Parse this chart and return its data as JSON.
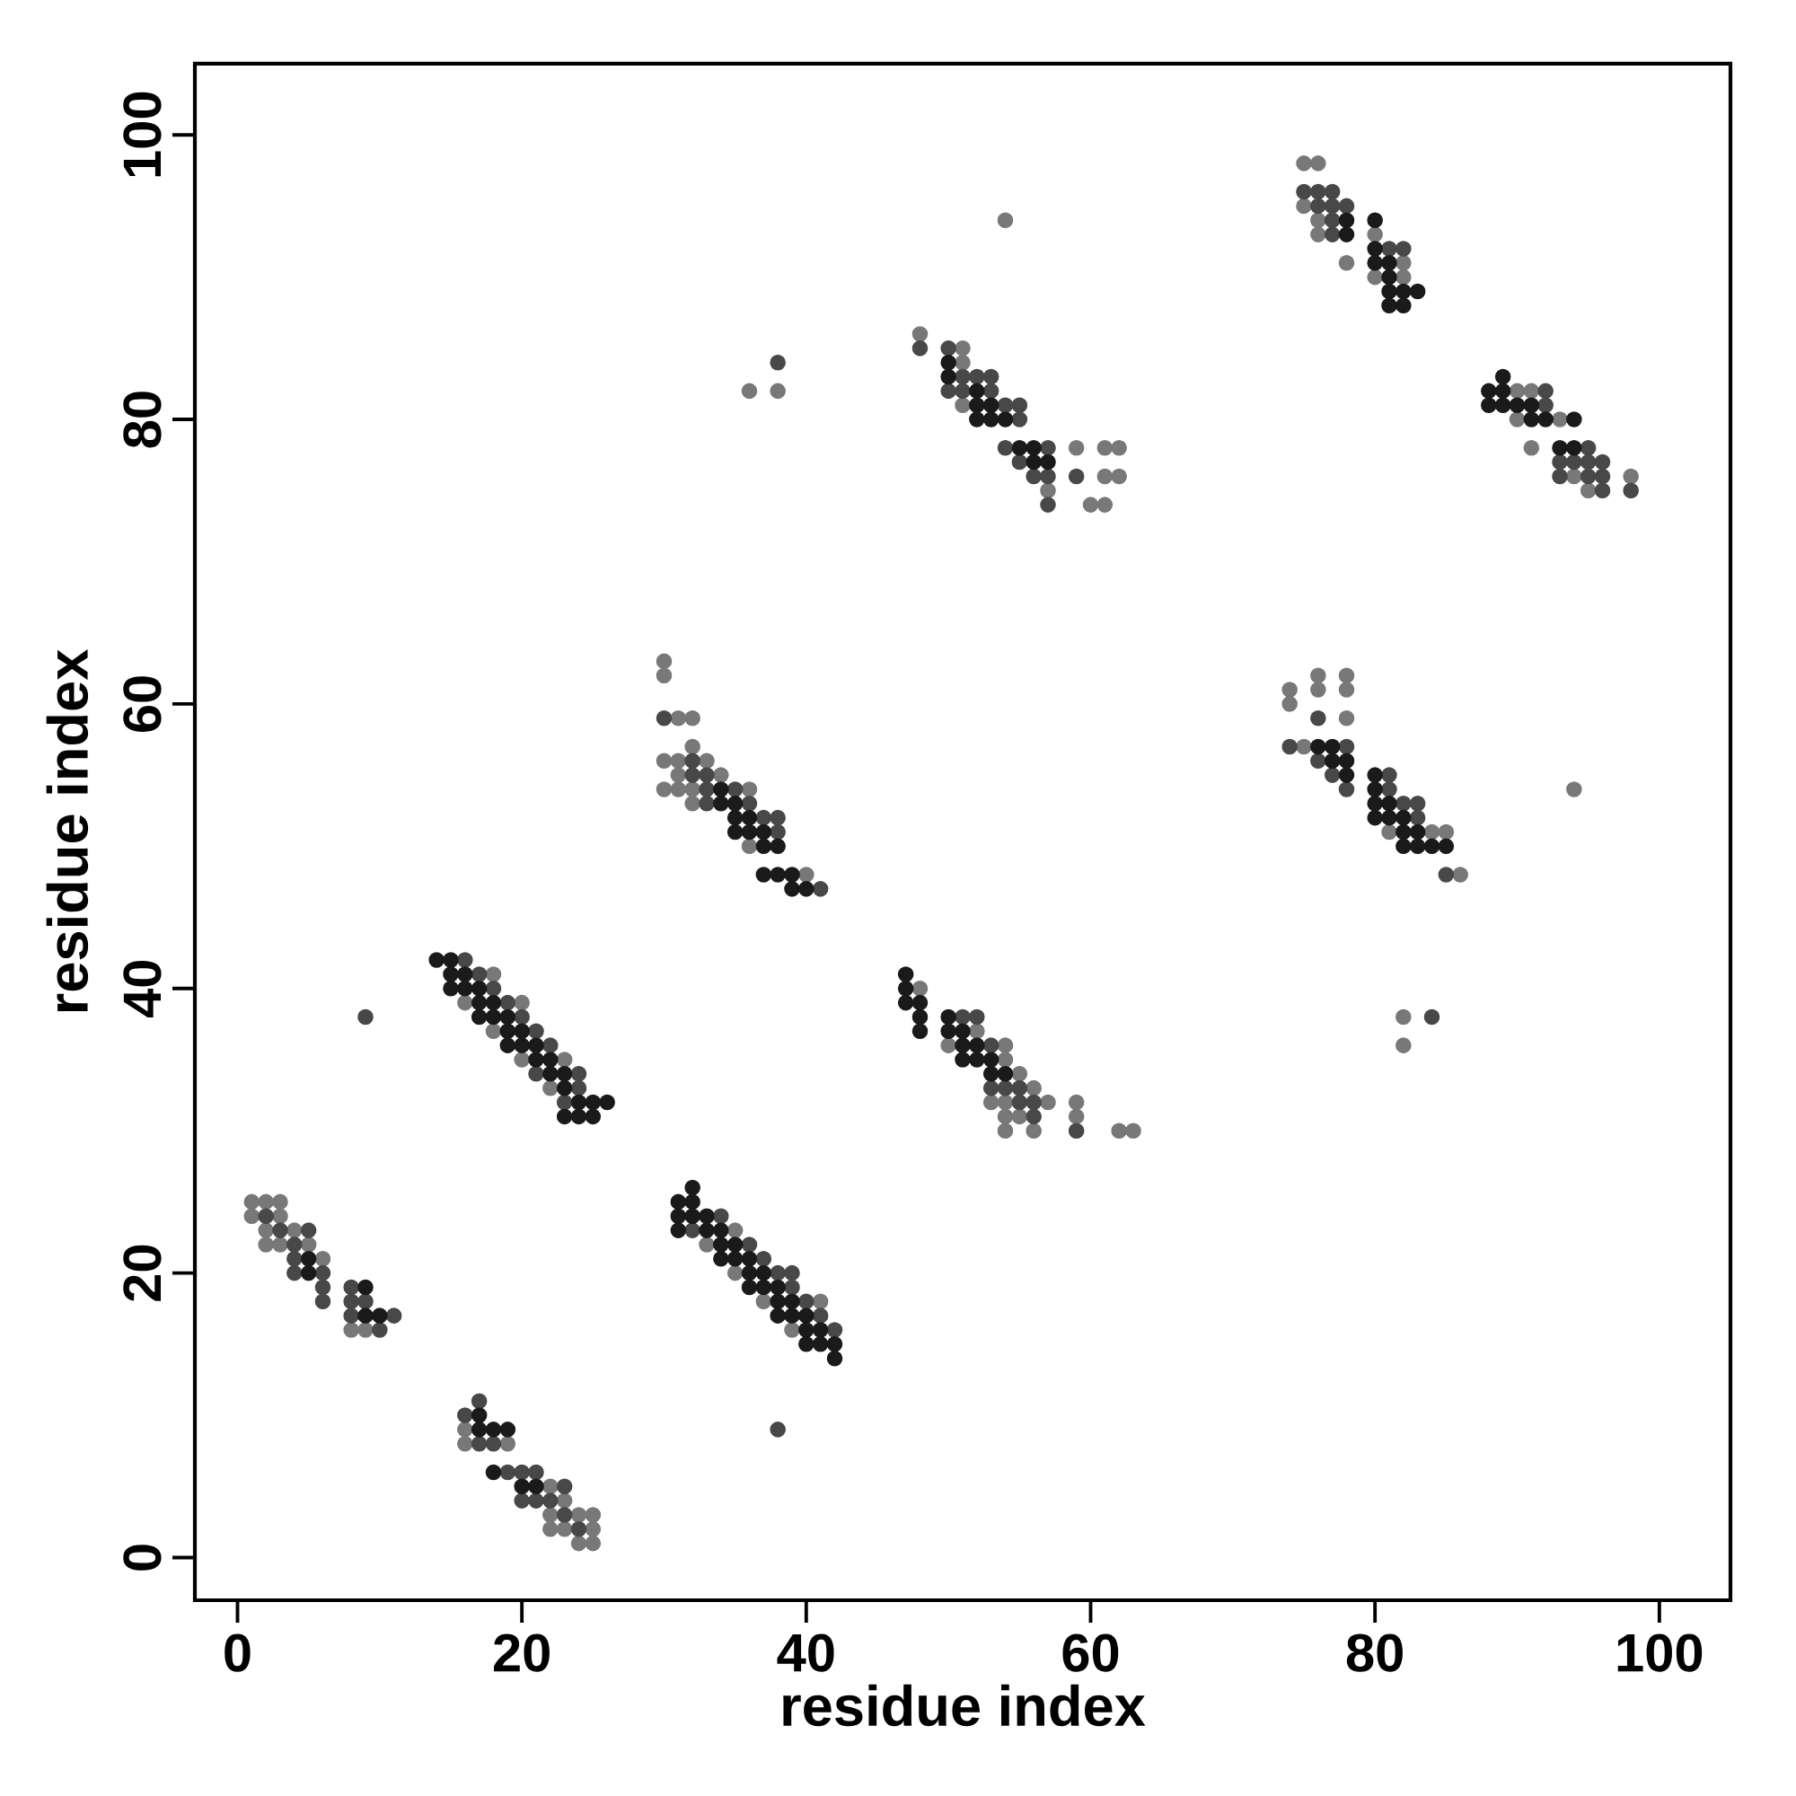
{
  "chart_data": {
    "type": "scatter",
    "xlabel": "residue index",
    "ylabel": "residue index",
    "xlim": [
      -3,
      105
    ],
    "ylim": [
      -3,
      105
    ],
    "xticks": [
      0,
      20,
      40,
      60,
      80,
      100
    ],
    "yticks": [
      0,
      20,
      40,
      60,
      80,
      100
    ],
    "marker": "circle",
    "series": [
      {
        "color": "#787878",
        "x": [
          1,
          2,
          3,
          1,
          3,
          2,
          4,
          2,
          3,
          5,
          6,
          8,
          9,
          16,
          16,
          19,
          22,
          23,
          22,
          24,
          25,
          22,
          23,
          25,
          24,
          25,
          18,
          16,
          20,
          18,
          20,
          23,
          22,
          30,
          30,
          31,
          32,
          32,
          30,
          31,
          33,
          31,
          34,
          30,
          31,
          32,
          36,
          32,
          36,
          40,
          35,
          33,
          35,
          37,
          41,
          39,
          48,
          52,
          50,
          54,
          54,
          55,
          56,
          53,
          54,
          57,
          59,
          54,
          55,
          59,
          54,
          56,
          62,
          63,
          48,
          51,
          51,
          51,
          59,
          61,
          62,
          61,
          62,
          57,
          60,
          61,
          36,
          38,
          54,
          75,
          76,
          75,
          76,
          76,
          80,
          78,
          82,
          80,
          82,
          90,
          91,
          90,
          93,
          91,
          94,
          98,
          95,
          76,
          78,
          74,
          76,
          78,
          74,
          78,
          75,
          81,
          84,
          85,
          86,
          82,
          82,
          94
        ],
        "values": [
          25,
          25,
          25,
          24,
          24,
          23,
          23,
          22,
          22,
          22,
          21,
          16,
          16,
          9,
          8,
          8,
          5,
          4,
          3,
          3,
          3,
          2,
          2,
          2,
          1,
          1,
          41,
          39,
          39,
          37,
          35,
          35,
          33,
          63,
          62,
          59,
          59,
          57,
          56,
          56,
          56,
          55,
          55,
          54,
          54,
          54,
          54,
          53,
          50,
          48,
          23,
          22,
          20,
          18,
          18,
          16,
          40,
          37,
          36,
          36,
          35,
          34,
          33,
          32,
          32,
          32,
          32,
          31,
          31,
          31,
          30,
          30,
          30,
          30,
          86,
          85,
          84,
          81,
          78,
          78,
          78,
          76,
          76,
          75,
          74,
          74,
          82,
          82,
          94,
          98,
          98,
          95,
          94,
          93,
          93,
          91,
          91,
          90,
          90,
          82,
          82,
          80,
          80,
          78,
          76,
          76,
          75,
          62,
          62,
          61,
          61,
          61,
          60,
          59,
          57,
          51,
          51,
          51,
          48,
          38,
          36,
          54
        ]
      },
      {
        "color": "#484848",
        "x": [
          2,
          3,
          5,
          4,
          4,
          4,
          6,
          6,
          6,
          8,
          9,
          8,
          11,
          10,
          8,
          17,
          16,
          17,
          18,
          19,
          20,
          21,
          23,
          20,
          21,
          22,
          23,
          24,
          16,
          17,
          18,
          19,
          20,
          21,
          22,
          21,
          24,
          24,
          23,
          30,
          32,
          32,
          33,
          33,
          35,
          33,
          36,
          37,
          38,
          38,
          41,
          34,
          32,
          36,
          37,
          38,
          39,
          39,
          40,
          41,
          42,
          38,
          51,
          52,
          53,
          53,
          54,
          55,
          55,
          56,
          56,
          59,
          9,
          48,
          50,
          51,
          52,
          53,
          50,
          51,
          53,
          54,
          55,
          55,
          54,
          57,
          55,
          56,
          57,
          59,
          57,
          38,
          75,
          76,
          77,
          76,
          77,
          78,
          77,
          77,
          81,
          82,
          92,
          92,
          95,
          93,
          94,
          95,
          96,
          93,
          95,
          96,
          96,
          98,
          76,
          74,
          78,
          76,
          77,
          78,
          81,
          81,
          82,
          83,
          83,
          85,
          84
        ],
        "values": [
          24,
          23,
          23,
          22,
          21,
          20,
          20,
          19,
          18,
          18,
          18,
          17,
          17,
          16,
          19,
          11,
          10,
          8,
          8,
          6,
          6,
          6,
          5,
          4,
          4,
          4,
          3,
          2,
          42,
          41,
          40,
          39,
          38,
          37,
          36,
          34,
          34,
          33,
          32,
          59,
          56,
          55,
          55,
          54,
          54,
          53,
          53,
          52,
          52,
          51,
          47,
          24,
          23,
          22,
          21,
          20,
          20,
          19,
          18,
          17,
          16,
          9,
          38,
          38,
          36,
          33,
          33,
          33,
          32,
          32,
          31,
          30,
          38,
          85,
          85,
          83,
          83,
          83,
          82,
          82,
          82,
          81,
          81,
          80,
          78,
          78,
          77,
          76,
          76,
          76,
          74,
          84,
          96,
          96,
          96,
          95,
          95,
          95,
          94,
          93,
          92,
          92,
          82,
          81,
          78,
          77,
          77,
          77,
          77,
          76,
          76,
          76,
          75,
          75,
          59,
          57,
          57,
          56,
          55,
          54,
          55,
          54,
          53,
          53,
          52,
          48,
          38
        ]
      },
      {
        "color": "#1a1a1a",
        "x": [
          5,
          5,
          9,
          9,
          10,
          17,
          17,
          18,
          19,
          20,
          21,
          18,
          14,
          15,
          15,
          16,
          15,
          16,
          17,
          17,
          18,
          17,
          18,
          19,
          19,
          20,
          19,
          20,
          21,
          21,
          22,
          22,
          23,
          23,
          24,
          25,
          26,
          23,
          24,
          25,
          34,
          34,
          35,
          35,
          36,
          35,
          36,
          37,
          37,
          38,
          37,
          38,
          39,
          39,
          40,
          32,
          31,
          32,
          31,
          32,
          33,
          31,
          33,
          34,
          34,
          35,
          34,
          35,
          36,
          36,
          37,
          36,
          37,
          38,
          38,
          39,
          38,
          39,
          40,
          40,
          41,
          40,
          41,
          42,
          42,
          47,
          47,
          47,
          48,
          48,
          50,
          48,
          50,
          51,
          51,
          52,
          51,
          52,
          53,
          53,
          54,
          50,
          50,
          52,
          52,
          53,
          52,
          53,
          54,
          55,
          56,
          56,
          57,
          78,
          80,
          78,
          80,
          80,
          81,
          81,
          81,
          82,
          83,
          81,
          82,
          89,
          88,
          89,
          88,
          89,
          90,
          91,
          91,
          92,
          94,
          93,
          94,
          76,
          77,
          77,
          78,
          78,
          80,
          80,
          80,
          81,
          80,
          81,
          82,
          82,
          83,
          82,
          83,
          84,
          85
        ],
        "values": [
          21,
          20,
          19,
          17,
          17,
          10,
          9,
          9,
          9,
          5,
          5,
          6,
          42,
          42,
          41,
          41,
          40,
          40,
          40,
          39,
          39,
          38,
          38,
          38,
          37,
          37,
          36,
          36,
          36,
          35,
          35,
          34,
          34,
          33,
          32,
          32,
          32,
          31,
          31,
          31,
          54,
          53,
          53,
          52,
          52,
          51,
          51,
          51,
          50,
          50,
          48,
          48,
          48,
          47,
          47,
          26,
          25,
          25,
          24,
          24,
          24,
          23,
          23,
          23,
          22,
          22,
          21,
          21,
          21,
          20,
          20,
          19,
          19,
          19,
          18,
          18,
          17,
          17,
          17,
          16,
          16,
          15,
          15,
          15,
          14,
          41,
          40,
          39,
          39,
          38,
          38,
          37,
          37,
          37,
          36,
          36,
          35,
          35,
          35,
          34,
          34,
          84,
          83,
          82,
          81,
          81,
          80,
          80,
          80,
          78,
          78,
          77,
          77,
          94,
          94,
          93,
          92,
          91,
          91,
          90,
          89,
          89,
          89,
          88,
          88,
          83,
          82,
          82,
          81,
          81,
          81,
          81,
          80,
          80,
          80,
          78,
          78,
          57,
          57,
          56,
          56,
          55,
          55,
          54,
          53,
          53,
          52,
          52,
          52,
          51,
          51,
          50,
          50,
          50,
          50
        ]
      }
    ]
  }
}
